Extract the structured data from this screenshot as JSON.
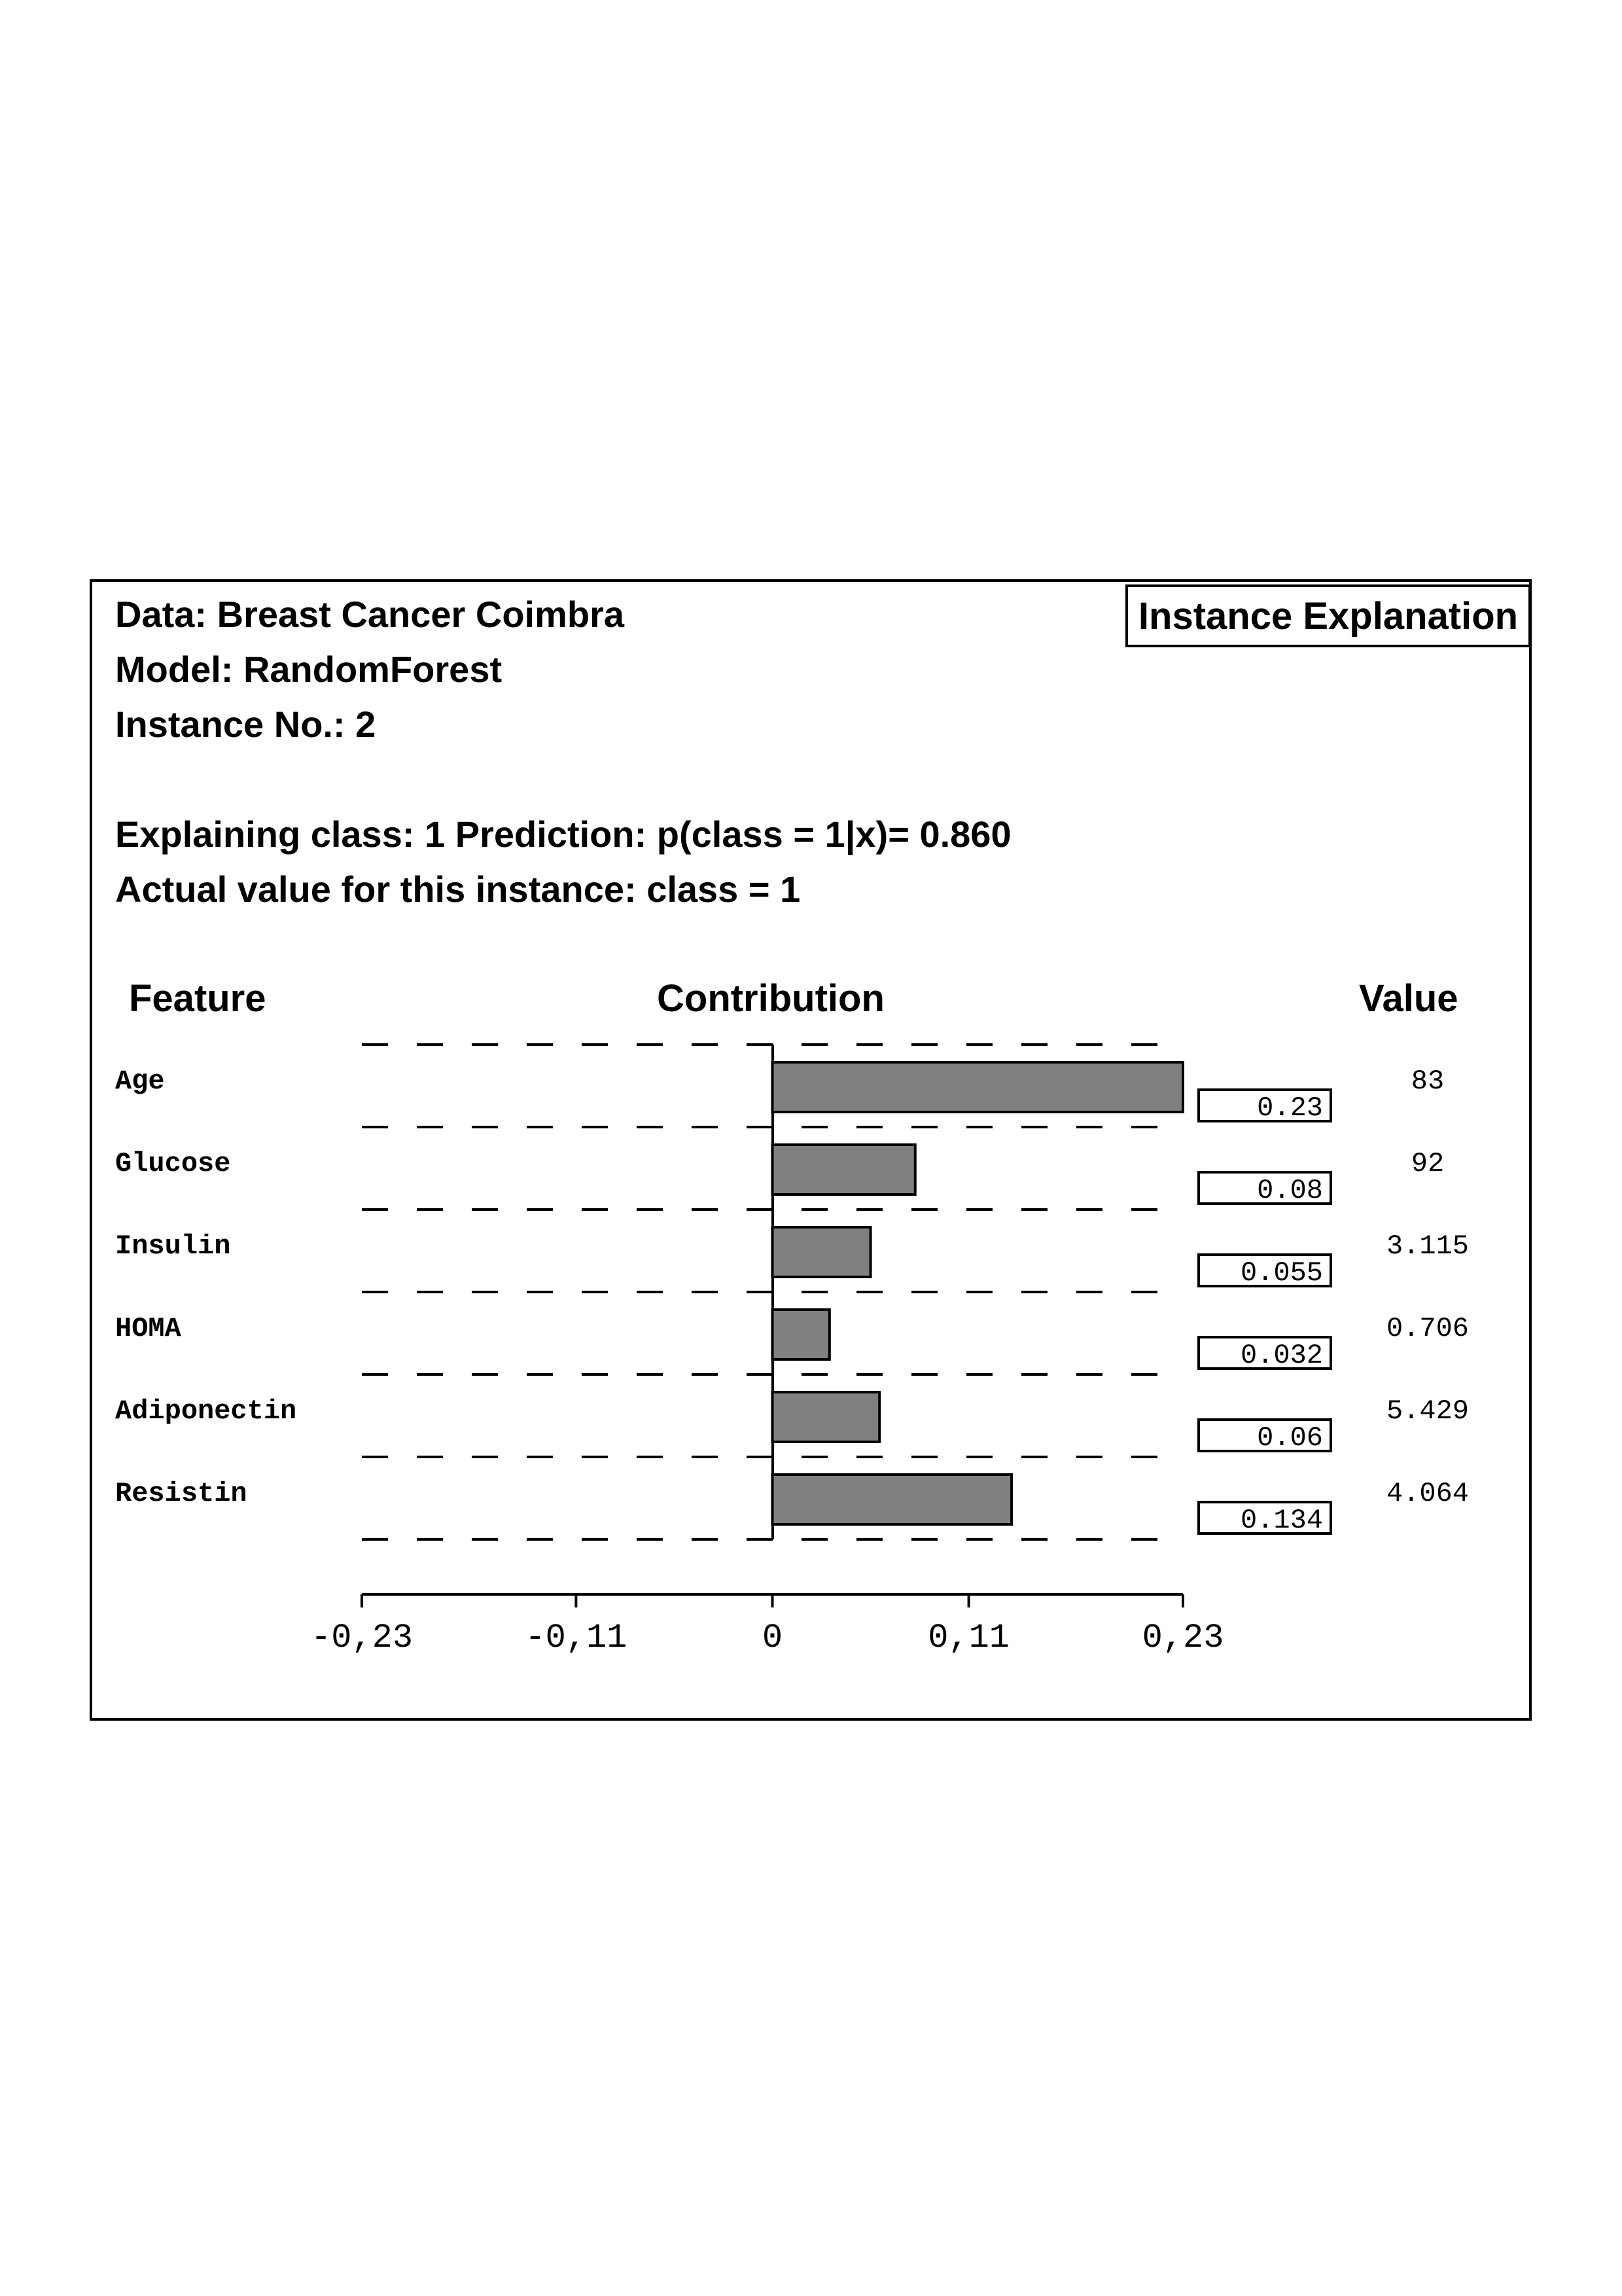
{
  "header": {
    "data_line": "Data: Breast Cancer Coimbra",
    "model_line": "Model: RandomForest",
    "instance_line": "Instance No.: 2",
    "class_line": "Explaining class: 1 Prediction: p(class = 1|x)= 0.860",
    "actual_line": "Actual value for this instance: class = 1",
    "badge": "Instance Explanation"
  },
  "columns": {
    "feature": "Feature",
    "contribution": "Contribution",
    "value": "Value"
  },
  "chart_data": {
    "type": "bar",
    "orientation": "horizontal",
    "categories": [
      "Age",
      "Glucose",
      "Insulin",
      "HOMA",
      "Adiponectin",
      "Resistin"
    ],
    "values": [
      0.23,
      0.08,
      0.055,
      0.032,
      0.06,
      0.134
    ],
    "value_labels": [
      "0.23",
      "0.08",
      "0.055",
      "0.032",
      "0.06",
      "0.134"
    ],
    "feature_values": [
      "83",
      "92",
      "3.115",
      "0.706",
      "5.429",
      "4.064"
    ],
    "xlim": [
      -0.23,
      0.23
    ],
    "xticks": [
      -0.23,
      -0.11,
      0,
      0.11,
      0.23
    ],
    "xtick_labels": [
      "-0,23",
      "-0,11",
      "0",
      "0,11",
      "0,23"
    ],
    "bar_color": "#808080",
    "grid": "dashed horizontal separators"
  }
}
